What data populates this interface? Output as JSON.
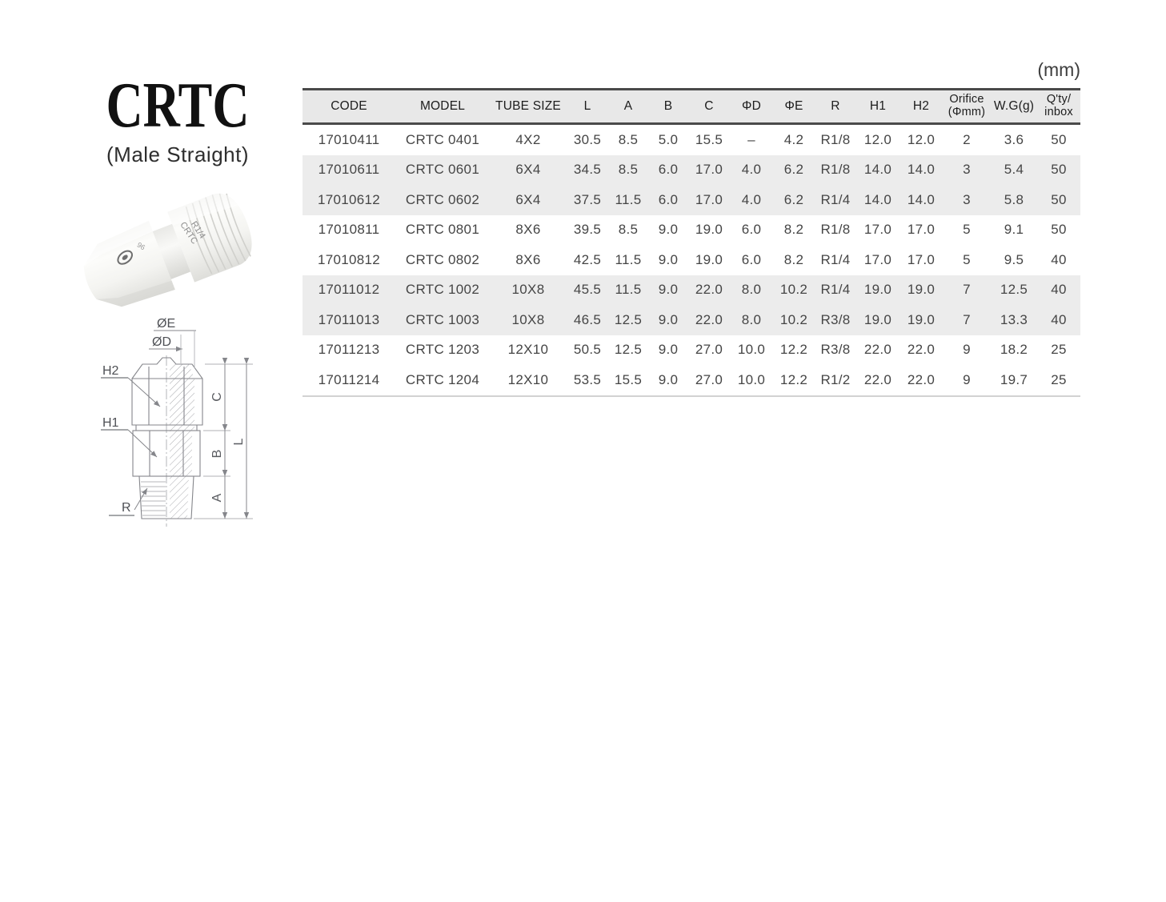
{
  "unit_label": "(mm)",
  "product": {
    "title": "CRTC",
    "subtitle": "(Male Straight)",
    "photo": {
      "marking_model": "CRTC",
      "marking_thread": "R1/4"
    }
  },
  "diagram": {
    "labels": {
      "dia_e": "ØE",
      "dia_d": "ØD",
      "h2": "H2",
      "h1": "H1",
      "r": "R",
      "dim_c": "C",
      "dim_b": "B",
      "dim_a": "A",
      "dim_l": "L"
    }
  },
  "table": {
    "columns": [
      {
        "lines": [
          "CODE"
        ]
      },
      {
        "lines": [
          "MODEL"
        ]
      },
      {
        "lines": [
          "TUBE SIZE"
        ]
      },
      {
        "lines": [
          "L"
        ]
      },
      {
        "lines": [
          "A"
        ]
      },
      {
        "lines": [
          "B"
        ]
      },
      {
        "lines": [
          "C"
        ]
      },
      {
        "lines": [
          "ΦD"
        ]
      },
      {
        "lines": [
          "ΦE"
        ]
      },
      {
        "lines": [
          "R"
        ]
      },
      {
        "lines": [
          "H1"
        ]
      },
      {
        "lines": [
          "H2"
        ]
      },
      {
        "lines": [
          "Orifice",
          "(Φmm)"
        ]
      },
      {
        "lines": [
          "W.G(g)"
        ]
      },
      {
        "lines": [
          "Q'ty/",
          "inbox"
        ]
      }
    ],
    "rows": [
      {
        "shaded": false,
        "cells": [
          "17010411",
          "CRTC 0401",
          "4X2",
          "30.5",
          "8.5",
          "5.0",
          "15.5",
          "–",
          "4.2",
          "R1/8",
          "12.0",
          "12.0",
          "2",
          "3.6",
          "50"
        ]
      },
      {
        "shaded": true,
        "cells": [
          "17010611",
          "CRTC 0601",
          "6X4",
          "34.5",
          "8.5",
          "6.0",
          "17.0",
          "4.0",
          "6.2",
          "R1/8",
          "14.0",
          "14.0",
          "3",
          "5.4",
          "50"
        ]
      },
      {
        "shaded": true,
        "cells": [
          "17010612",
          "CRTC 0602",
          "6X4",
          "37.5",
          "11.5",
          "6.0",
          "17.0",
          "4.0",
          "6.2",
          "R1/4",
          "14.0",
          "14.0",
          "3",
          "5.8",
          "50"
        ]
      },
      {
        "shaded": false,
        "cells": [
          "17010811",
          "CRTC 0801",
          "8X6",
          "39.5",
          "8.5",
          "9.0",
          "19.0",
          "6.0",
          "8.2",
          "R1/8",
          "17.0",
          "17.0",
          "5",
          "9.1",
          "50"
        ]
      },
      {
        "shaded": false,
        "cells": [
          "17010812",
          "CRTC 0802",
          "8X6",
          "42.5",
          "11.5",
          "9.0",
          "19.0",
          "6.0",
          "8.2",
          "R1/4",
          "17.0",
          "17.0",
          "5",
          "9.5",
          "40"
        ]
      },
      {
        "shaded": true,
        "cells": [
          "17011012",
          "CRTC 1002",
          "10X8",
          "45.5",
          "11.5",
          "9.0",
          "22.0",
          "8.0",
          "10.2",
          "R1/4",
          "19.0",
          "19.0",
          "7",
          "12.5",
          "40"
        ]
      },
      {
        "shaded": true,
        "cells": [
          "17011013",
          "CRTC 1003",
          "10X8",
          "46.5",
          "12.5",
          "9.0",
          "22.0",
          "8.0",
          "10.2",
          "R3/8",
          "19.0",
          "19.0",
          "7",
          "13.3",
          "40"
        ]
      },
      {
        "shaded": false,
        "cells": [
          "17011213",
          "CRTC 1203",
          "12X10",
          "50.5",
          "12.5",
          "9.0",
          "27.0",
          "10.0",
          "12.2",
          "R3/8",
          "22.0",
          "22.0",
          "9",
          "18.2",
          "25"
        ]
      },
      {
        "shaded": false,
        "cells": [
          "17011214",
          "CRTC 1204",
          "12X10",
          "53.5",
          "15.5",
          "9.0",
          "27.0",
          "10.0",
          "12.2",
          "R1/2",
          "22.0",
          "22.0",
          "9",
          "19.7",
          "25"
        ]
      }
    ]
  }
}
